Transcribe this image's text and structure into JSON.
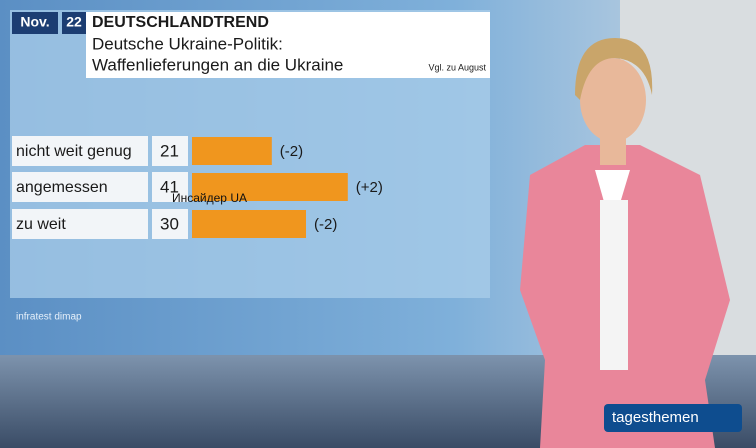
{
  "chart_data": {
    "type": "bar",
    "date_month": "Nov.",
    "date_day": "22",
    "brand": "DEUTSCHLANDTREND",
    "title": [
      "Deutsche Ukraine-Politik:",
      "Waffenlieferungen an die Ukraine"
    ],
    "comparison_note": "Vgl. zu August",
    "categories": [
      "nicht weit genug",
      "angemessen",
      "zu weit"
    ],
    "values": [
      21,
      41,
      30
    ],
    "change_labels": [
      "(-2)",
      "(+2)",
      "(-2)"
    ],
    "color": "#f0961e",
    "source": "infratest dimap"
  },
  "watermark": "Инсайдер UA",
  "channel_logo": "tagesthemen"
}
